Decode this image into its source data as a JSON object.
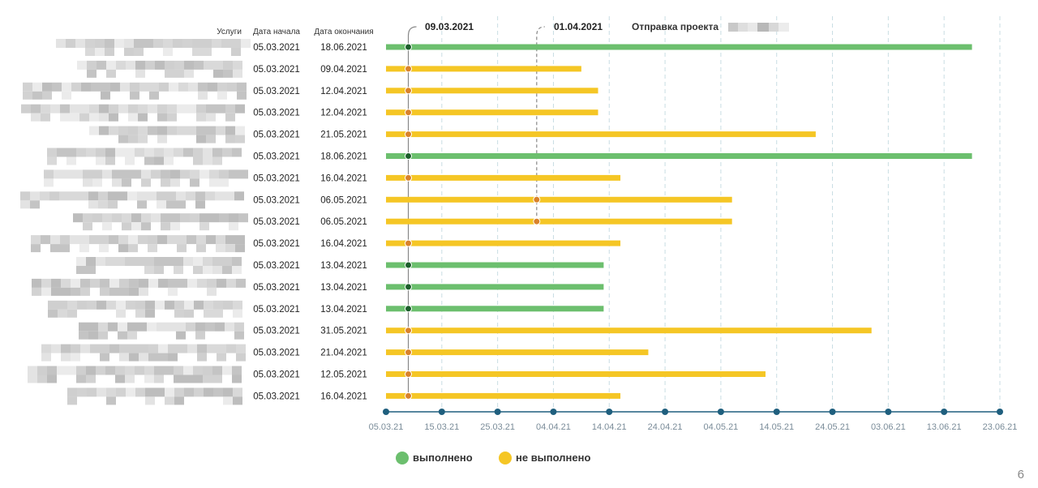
{
  "columns": {
    "services": "Услуги",
    "start": "Дата начала",
    "end": "Дата окончания"
  },
  "markers": [
    {
      "label": "09.03.2021",
      "date": "2021-03-09"
    },
    {
      "label": "01.04.2021",
      "date": "2021-04-01"
    }
  ],
  "project_send": {
    "label": "Отправка проекта"
  },
  "legend": [
    {
      "label": "выполнено",
      "color": "#6cbf6e"
    },
    {
      "label": "не выполнено",
      "color": "#f5c625"
    }
  ],
  "colors": {
    "done": "#6cbf6e",
    "not_done": "#f5c625",
    "dot_done": "#1b5e2a",
    "dot_not_done": "#d9822b",
    "axis": "#1f5f7e",
    "grid": "#c9dde3",
    "tick_text": "#7a8c99"
  },
  "page_number": "6",
  "chart_data": {
    "type": "gantt",
    "x_ticks": [
      "05.03.21",
      "15.03.21",
      "25.03.21",
      "04.04.21",
      "14.04.21",
      "24.04.21",
      "04.05.21",
      "14.05.21",
      "24.05.21",
      "03.06.21",
      "13.06.21",
      "23.06.21"
    ],
    "xlim": [
      "2021-03-05",
      "2021-06-23"
    ],
    "tasks": [
      {
        "start": "05.03.2021",
        "end": "18.06.2021",
        "status": "done",
        "marker": "2021-03-09"
      },
      {
        "start": "05.03.2021",
        "end": "09.04.2021",
        "status": "not_done",
        "marker": "2021-03-09"
      },
      {
        "start": "05.03.2021",
        "end": "12.04.2021",
        "status": "not_done",
        "marker": "2021-03-09"
      },
      {
        "start": "05.03.2021",
        "end": "12.04.2021",
        "status": "not_done",
        "marker": "2021-03-09"
      },
      {
        "start": "05.03.2021",
        "end": "21.05.2021",
        "status": "not_done",
        "marker": "2021-03-09"
      },
      {
        "start": "05.03.2021",
        "end": "18.06.2021",
        "status": "done",
        "marker": "2021-03-09"
      },
      {
        "start": "05.03.2021",
        "end": "16.04.2021",
        "status": "not_done",
        "marker": "2021-03-09"
      },
      {
        "start": "05.03.2021",
        "end": "06.05.2021",
        "status": "not_done",
        "marker": "2021-04-01"
      },
      {
        "start": "05.03.2021",
        "end": "06.05.2021",
        "status": "not_done",
        "marker": "2021-04-01"
      },
      {
        "start": "05.03.2021",
        "end": "16.04.2021",
        "status": "not_done",
        "marker": "2021-03-09"
      },
      {
        "start": "05.03.2021",
        "end": "13.04.2021",
        "status": "done",
        "marker": "2021-03-09"
      },
      {
        "start": "05.03.2021",
        "end": "13.04.2021",
        "status": "done",
        "marker": "2021-03-09"
      },
      {
        "start": "05.03.2021",
        "end": "13.04.2021",
        "status": "done",
        "marker": "2021-03-09"
      },
      {
        "start": "05.03.2021",
        "end": "31.05.2021",
        "status": "not_done",
        "marker": "2021-03-09"
      },
      {
        "start": "05.03.2021",
        "end": "21.04.2021",
        "status": "not_done",
        "marker": "2021-03-09"
      },
      {
        "start": "05.03.2021",
        "end": "12.05.2021",
        "status": "not_done",
        "marker": "2021-03-09"
      },
      {
        "start": "05.03.2021",
        "end": "16.04.2021",
        "status": "not_done",
        "marker": "2021-03-09"
      }
    ]
  }
}
